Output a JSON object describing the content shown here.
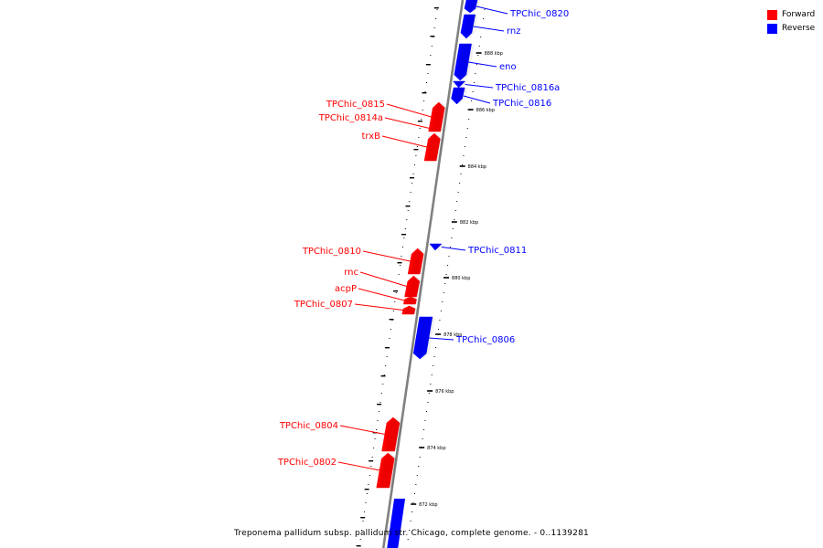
{
  "legend": {
    "items": [
      {
        "label": "Forward",
        "color": "#ff0000"
      },
      {
        "label": "Reverse",
        "color": "#0000ff"
      }
    ]
  },
  "caption": "Treponema pallidum subsp. pallidum str. Chicago, complete genome. - 0..1139281",
  "colors": {
    "forward": "#ff0000",
    "reverse": "#0000ff",
    "backbone": "#808080"
  },
  "ticks": [
    {
      "label": "888 kbp"
    },
    {
      "label": "886 kbp"
    },
    {
      "label": "884 kbp"
    },
    {
      "label": "882 kbp"
    },
    {
      "label": "880 kbp"
    },
    {
      "label": "878 kbp"
    },
    {
      "label": "876 kbp"
    },
    {
      "label": "874 kbp"
    },
    {
      "label": "872 kbp"
    }
  ],
  "genes": [
    {
      "name": "TPChic_0820",
      "strand": "reverse"
    },
    {
      "name": "rnz",
      "strand": "reverse"
    },
    {
      "name": "eno",
      "strand": "reverse"
    },
    {
      "name": "TPChic_0816a",
      "strand": "reverse"
    },
    {
      "name": "TPChic_0816",
      "strand": "reverse"
    },
    {
      "name": "TPChic_0815",
      "strand": "forward"
    },
    {
      "name": "TPChic_0814a",
      "strand": "forward"
    },
    {
      "name": "trxB",
      "strand": "forward"
    },
    {
      "name": "TPChic_0811",
      "strand": "reverse"
    },
    {
      "name": "TPChic_0810",
      "strand": "forward"
    },
    {
      "name": "rnc",
      "strand": "forward"
    },
    {
      "name": "acpP",
      "strand": "forward"
    },
    {
      "name": "TPChic_0807",
      "strand": "forward"
    },
    {
      "name": "TPChic_0806",
      "strand": "reverse"
    },
    {
      "name": "TPChic_0804",
      "strand": "forward"
    },
    {
      "name": "TPChic_0802",
      "strand": "forward"
    }
  ]
}
